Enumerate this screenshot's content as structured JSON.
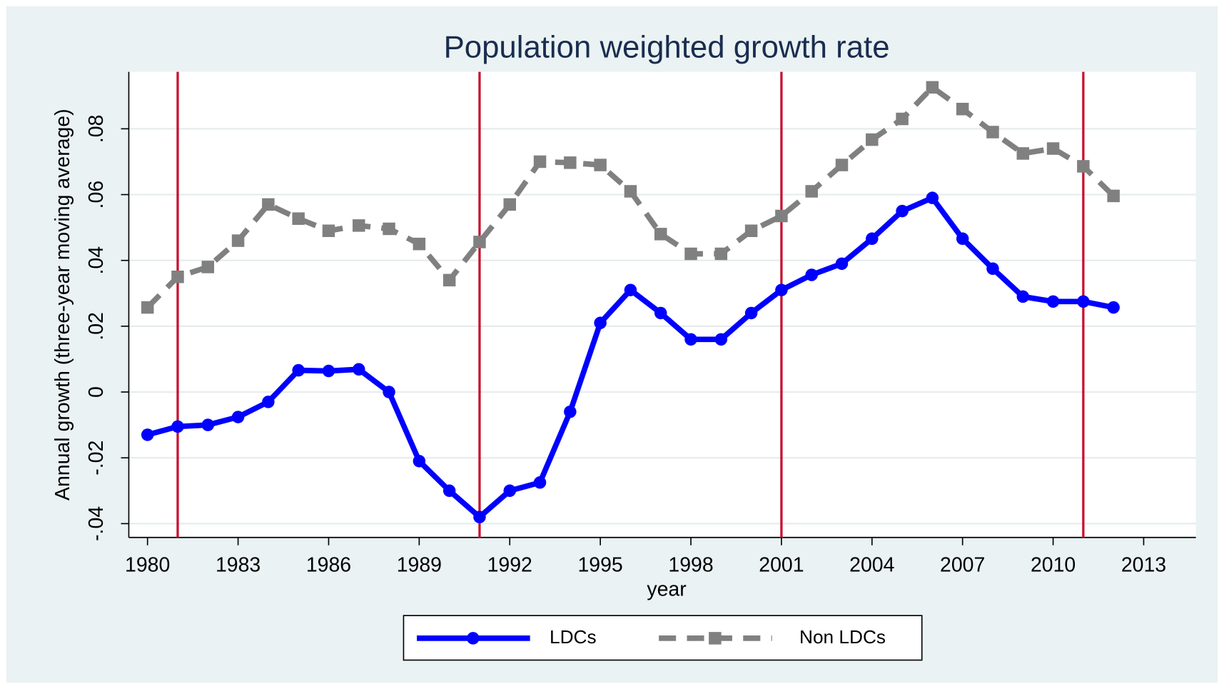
{
  "chart_data": {
    "type": "line",
    "title": "Population weighted growth rate",
    "x_label": "year",
    "y_label": "Annual growth (three-year moving average)",
    "x": [
      1980,
      1981,
      1982,
      1983,
      1984,
      1985,
      1986,
      1987,
      1988,
      1989,
      1990,
      1991,
      1992,
      1993,
      1994,
      1995,
      1996,
      1997,
      1998,
      1999,
      2000,
      2001,
      2002,
      2003,
      2004,
      2005,
      2006,
      2007,
      2008,
      2009,
      2010,
      2011,
      2012
    ],
    "series": [
      {
        "name": "LDCs",
        "color": "#0000ff",
        "dash": false,
        "marker": "circle",
        "values": [
          -0.013,
          -0.0105,
          -0.01,
          -0.0076,
          -0.003,
          0.0066,
          0.0064,
          0.0069,
          0,
          -0.021,
          -0.03,
          -0.038,
          -0.03,
          -0.0275,
          -0.006,
          0.021,
          0.031,
          0.024,
          0.016,
          0.016,
          0.024,
          0.031,
          0.0356,
          0.039,
          0.0466,
          0.055,
          0.059,
          0.0466,
          0.0375,
          0.029,
          0.0275,
          0.0275,
          0.0257
        ]
      },
      {
        "name": "Non LDCs",
        "color": "#808080",
        "dash": true,
        "marker": "square",
        "values": [
          0.0257,
          0.035,
          0.038,
          0.046,
          0.057,
          0.0527,
          0.049,
          0.0506,
          0.0496,
          0.045,
          0.034,
          0.0456,
          0.057,
          0.07,
          0.0697,
          0.069,
          0.061,
          0.048,
          0.042,
          0.042,
          0.049,
          0.0535,
          0.061,
          0.069,
          0.0767,
          0.083,
          0.0926,
          0.086,
          0.079,
          0.0725,
          0.074,
          0.0686,
          0.0596
        ]
      }
    ],
    "vlines": [
      1981,
      1991,
      2001,
      2011
    ],
    "vline_color": "#c8102e",
    "xlim": [
      1979.38,
      2014.73
    ],
    "xticks": [
      1980,
      1983,
      1986,
      1989,
      1992,
      1995,
      1998,
      2001,
      2004,
      2007,
      2010,
      2013
    ],
    "ylim": [
      -0.0442,
      0.0973
    ],
    "yticks": [
      {
        "value": -0.04,
        "label": "-.04"
      },
      {
        "value": -0.02,
        "label": "-.02"
      },
      0,
      {
        "value": 0.02,
        "label": ".02"
      },
      {
        "value": 0.04,
        "label": ".04"
      },
      {
        "value": 0.06,
        "label": ".06"
      },
      {
        "value": 0.08,
        "label": ".08"
      }
    ],
    "grid": true,
    "legend": "bottom"
  }
}
